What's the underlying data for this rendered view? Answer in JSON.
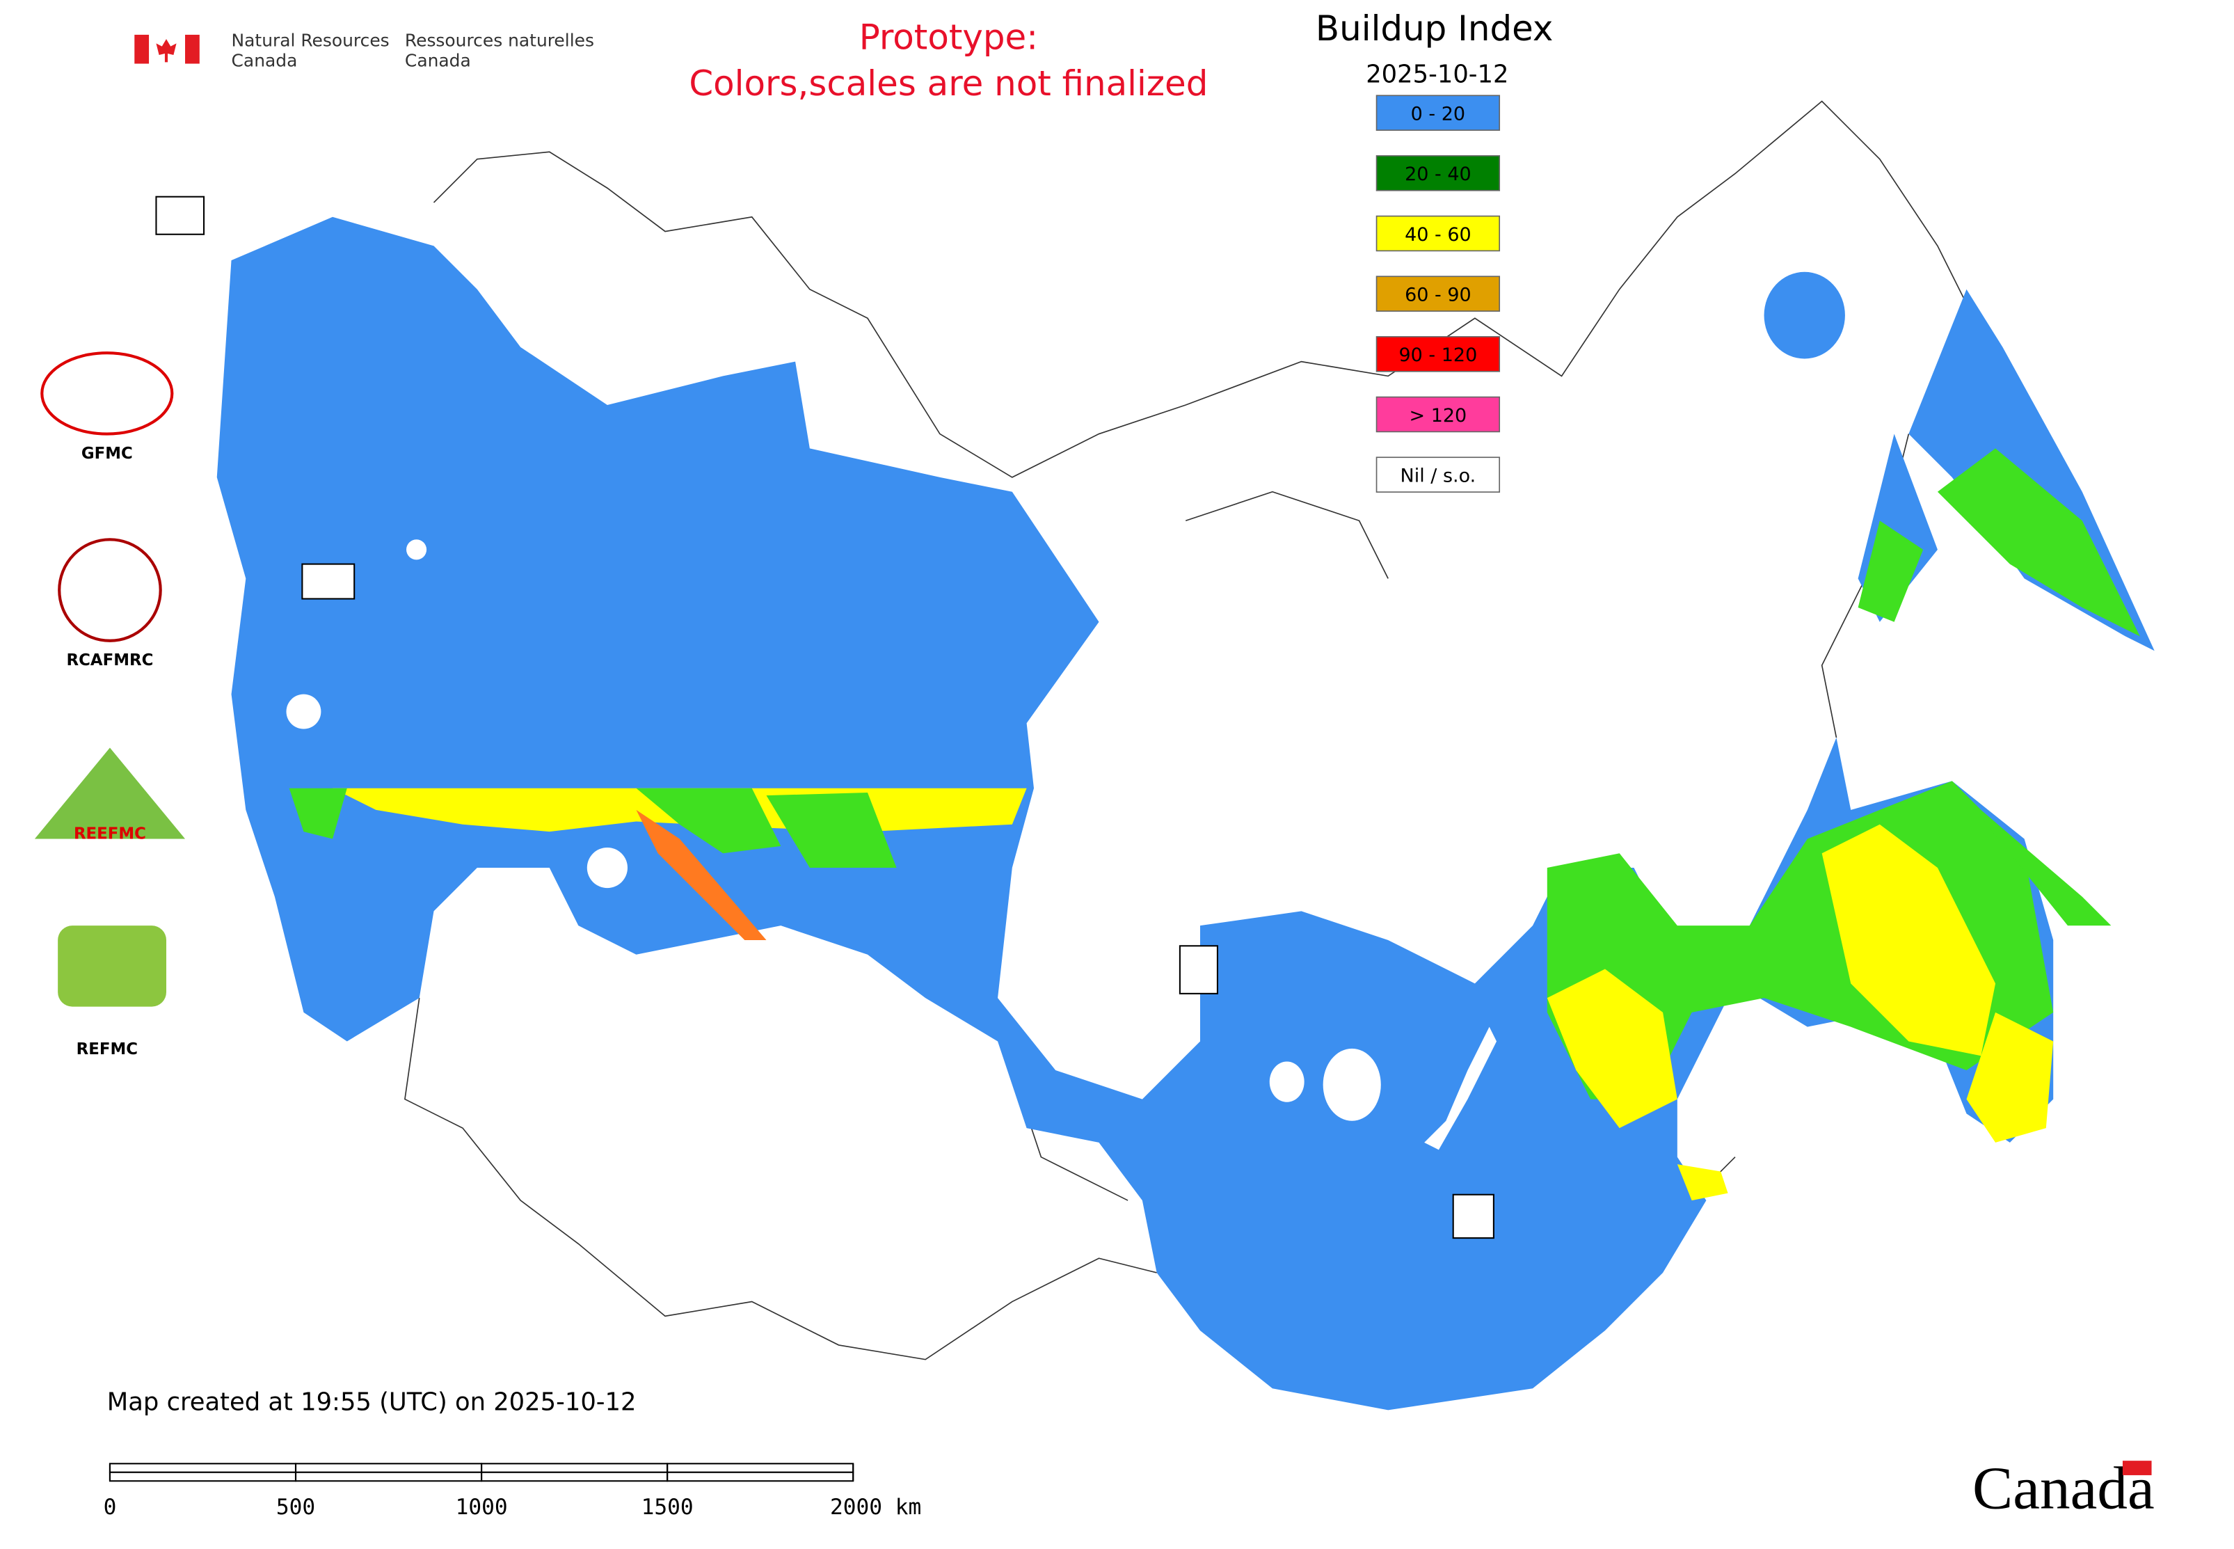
{
  "header": {
    "org_en": [
      "Natural Resources",
      "Canada"
    ],
    "org_fr": [
      "Ressources naturelles",
      "Canada"
    ]
  },
  "notice": [
    "Prototype:",
    "Colors,scales are not finalized"
  ],
  "legend": {
    "title": "Buildup Index",
    "date": "2025-10-12",
    "classes": [
      {
        "label": "0 - 20",
        "color": "#3c8ff0"
      },
      {
        "label": "20 - 40",
        "color": "#008000"
      },
      {
        "label": "40 - 60",
        "color": "#ffff00"
      },
      {
        "label": "60 - 90",
        "color": "#e0a000"
      },
      {
        "label": "90 - 120",
        "color": "#ff0000"
      },
      {
        "label": "> 120",
        "color": "#ff3c9c"
      },
      {
        "label": "Nil / s.o.",
        "color": "#ffffff"
      }
    ]
  },
  "logos": {
    "labels": [
      "GFMC",
      "RCAFMRC",
      "REFMC"
    ],
    "reefmc": "REEFMC"
  },
  "footer": {
    "created": "Map created at 19:55 (UTC) on 2025-10-12",
    "wordmark": "Canada"
  },
  "scale_bar": {
    "ticks": [
      0,
      500,
      1000,
      1500,
      {
        "value": 2000,
        "label": "2000 km"
      }
    ]
  }
}
